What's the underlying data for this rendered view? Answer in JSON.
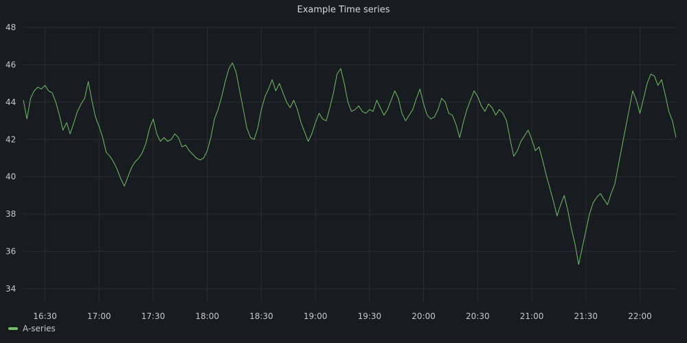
{
  "panel": {
    "title": "Example Time series"
  },
  "legend": {
    "items": [
      {
        "label": "A-series",
        "color": "#73bf69"
      }
    ]
  },
  "colors": {
    "background": "#181b1f",
    "grid": "#2a2d33",
    "series": "#73bf69",
    "tick_text": "#c7c8ca"
  },
  "chart_data": {
    "type": "line",
    "title": "Example Time series",
    "xlabel": "",
    "ylabel": "",
    "x_axis": {
      "kind": "time",
      "ticks": [
        "16:30",
        "17:00",
        "17:30",
        "18:00",
        "18:30",
        "19:00",
        "19:30",
        "20:00",
        "20:30",
        "21:00",
        "21:30",
        "22:00"
      ],
      "range": [
        "16:18",
        "22:20"
      ]
    },
    "y_axis": {
      "ticks": [
        34,
        36,
        38,
        40,
        42,
        44,
        46,
        48
      ],
      "range": [
        33.3,
        48
      ]
    },
    "grid": true,
    "legend": "bottom-left",
    "series": [
      {
        "name": "A-series",
        "color": "#73bf69",
        "points": [
          [
            "16:18",
            44.1
          ],
          [
            "16:20",
            43.1
          ],
          [
            "16:22",
            44.2
          ],
          [
            "16:24",
            44.6
          ],
          [
            "16:26",
            44.8
          ],
          [
            "16:28",
            44.7
          ],
          [
            "16:30",
            44.9
          ],
          [
            "16:32",
            44.6
          ],
          [
            "16:34",
            44.5
          ],
          [
            "16:36",
            44.0
          ],
          [
            "16:38",
            43.3
          ],
          [
            "16:40",
            42.5
          ],
          [
            "16:42",
            42.9
          ],
          [
            "16:44",
            42.3
          ],
          [
            "16:46",
            42.9
          ],
          [
            "16:48",
            43.5
          ],
          [
            "16:50",
            43.9
          ],
          [
            "16:52",
            44.2
          ],
          [
            "16:54",
            45.1
          ],
          [
            "16:56",
            44.1
          ],
          [
            "16:58",
            43.2
          ],
          [
            "17:00",
            42.7
          ],
          [
            "17:02",
            42.1
          ],
          [
            "17:04",
            41.3
          ],
          [
            "17:06",
            41.1
          ],
          [
            "17:08",
            40.8
          ],
          [
            "17:10",
            40.4
          ],
          [
            "17:12",
            39.9
          ],
          [
            "17:14",
            39.5
          ],
          [
            "17:16",
            40.0
          ],
          [
            "17:18",
            40.5
          ],
          [
            "17:20",
            40.8
          ],
          [
            "17:22",
            41.0
          ],
          [
            "17:24",
            41.3
          ],
          [
            "17:26",
            41.8
          ],
          [
            "17:28",
            42.6
          ],
          [
            "17:30",
            43.1
          ],
          [
            "17:32",
            42.3
          ],
          [
            "17:34",
            41.9
          ],
          [
            "17:36",
            42.1
          ],
          [
            "17:38",
            41.9
          ],
          [
            "17:40",
            42.0
          ],
          [
            "17:42",
            42.3
          ],
          [
            "17:44",
            42.1
          ],
          [
            "17:46",
            41.6
          ],
          [
            "17:48",
            41.7
          ],
          [
            "17:50",
            41.4
          ],
          [
            "17:52",
            41.2
          ],
          [
            "17:54",
            41.0
          ],
          [
            "17:56",
            40.9
          ],
          [
            "17:58",
            41.0
          ],
          [
            "18:00",
            41.4
          ],
          [
            "18:02",
            42.1
          ],
          [
            "18:04",
            43.1
          ],
          [
            "18:06",
            43.6
          ],
          [
            "18:08",
            44.3
          ],
          [
            "18:10",
            45.1
          ],
          [
            "18:12",
            45.8
          ],
          [
            "18:14",
            46.1
          ],
          [
            "18:16",
            45.6
          ],
          [
            "18:18",
            44.6
          ],
          [
            "18:20",
            43.6
          ],
          [
            "18:22",
            42.6
          ],
          [
            "18:24",
            42.1
          ],
          [
            "18:26",
            42.0
          ],
          [
            "18:28",
            42.6
          ],
          [
            "18:30",
            43.6
          ],
          [
            "18:32",
            44.3
          ],
          [
            "18:34",
            44.7
          ],
          [
            "18:36",
            45.2
          ],
          [
            "18:38",
            44.6
          ],
          [
            "18:40",
            45.0
          ],
          [
            "18:42",
            44.5
          ],
          [
            "18:44",
            44.0
          ],
          [
            "18:46",
            43.7
          ],
          [
            "18:48",
            44.1
          ],
          [
            "18:50",
            43.6
          ],
          [
            "18:52",
            42.9
          ],
          [
            "18:54",
            42.4
          ],
          [
            "18:56",
            41.9
          ],
          [
            "18:58",
            42.3
          ],
          [
            "19:00",
            42.9
          ],
          [
            "19:02",
            43.4
          ],
          [
            "19:04",
            43.1
          ],
          [
            "19:06",
            43.0
          ],
          [
            "19:08",
            43.7
          ],
          [
            "19:10",
            44.5
          ],
          [
            "19:12",
            45.5
          ],
          [
            "19:14",
            45.8
          ],
          [
            "19:16",
            45.0
          ],
          [
            "19:18",
            44.0
          ],
          [
            "19:20",
            43.5
          ],
          [
            "19:22",
            43.6
          ],
          [
            "19:24",
            43.8
          ],
          [
            "19:26",
            43.5
          ],
          [
            "19:28",
            43.4
          ],
          [
            "19:30",
            43.6
          ],
          [
            "19:32",
            43.5
          ],
          [
            "19:34",
            44.1
          ],
          [
            "19:36",
            43.7
          ],
          [
            "19:38",
            43.3
          ],
          [
            "19:40",
            43.6
          ],
          [
            "19:42",
            44.1
          ],
          [
            "19:44",
            44.6
          ],
          [
            "19:46",
            44.2
          ],
          [
            "19:48",
            43.4
          ],
          [
            "19:50",
            43.0
          ],
          [
            "19:52",
            43.3
          ],
          [
            "19:54",
            43.6
          ],
          [
            "19:56",
            44.2
          ],
          [
            "19:58",
            44.7
          ],
          [
            "20:00",
            43.9
          ],
          [
            "20:02",
            43.3
          ],
          [
            "20:04",
            43.1
          ],
          [
            "20:06",
            43.2
          ],
          [
            "20:08",
            43.6
          ],
          [
            "20:10",
            44.2
          ],
          [
            "20:12",
            44.0
          ],
          [
            "20:14",
            43.4
          ],
          [
            "20:16",
            43.3
          ],
          [
            "20:18",
            42.8
          ],
          [
            "20:20",
            42.1
          ],
          [
            "20:22",
            42.9
          ],
          [
            "20:24",
            43.6
          ],
          [
            "20:26",
            44.1
          ],
          [
            "20:28",
            44.6
          ],
          [
            "20:30",
            44.3
          ],
          [
            "20:32",
            43.8
          ],
          [
            "20:34",
            43.5
          ],
          [
            "20:36",
            43.9
          ],
          [
            "20:38",
            43.7
          ],
          [
            "20:40",
            43.3
          ],
          [
            "20:42",
            43.6
          ],
          [
            "20:44",
            43.4
          ],
          [
            "20:46",
            43.0
          ],
          [
            "20:48",
            42.0
          ],
          [
            "20:50",
            41.1
          ],
          [
            "20:52",
            41.4
          ],
          [
            "20:54",
            41.9
          ],
          [
            "20:56",
            42.2
          ],
          [
            "20:58",
            42.5
          ],
          [
            "21:00",
            42.0
          ],
          [
            "21:02",
            41.4
          ],
          [
            "21:04",
            41.6
          ],
          [
            "21:06",
            40.9
          ],
          [
            "21:08",
            40.1
          ],
          [
            "21:10",
            39.4
          ],
          [
            "21:12",
            38.7
          ],
          [
            "21:14",
            37.9
          ],
          [
            "21:16",
            38.5
          ],
          [
            "21:18",
            39.0
          ],
          [
            "21:20",
            38.2
          ],
          [
            "21:22",
            37.2
          ],
          [
            "21:24",
            36.4
          ],
          [
            "21:26",
            35.3
          ],
          [
            "21:28",
            36.2
          ],
          [
            "21:30",
            37.1
          ],
          [
            "21:32",
            38.0
          ],
          [
            "21:34",
            38.6
          ],
          [
            "21:36",
            38.9
          ],
          [
            "21:38",
            39.1
          ],
          [
            "21:40",
            38.8
          ],
          [
            "21:42",
            38.5
          ],
          [
            "21:44",
            39.1
          ],
          [
            "21:46",
            39.6
          ],
          [
            "21:48",
            40.6
          ],
          [
            "21:50",
            41.6
          ],
          [
            "21:52",
            42.6
          ],
          [
            "21:54",
            43.6
          ],
          [
            "21:56",
            44.6
          ],
          [
            "21:58",
            44.1
          ],
          [
            "22:00",
            43.4
          ],
          [
            "22:02",
            44.2
          ],
          [
            "22:04",
            45.0
          ],
          [
            "22:06",
            45.5
          ],
          [
            "22:08",
            45.4
          ],
          [
            "22:10",
            44.9
          ],
          [
            "22:12",
            45.2
          ],
          [
            "22:14",
            44.4
          ],
          [
            "22:16",
            43.5
          ],
          [
            "22:18",
            43.0
          ],
          [
            "22:20",
            42.1
          ]
        ]
      }
    ]
  }
}
